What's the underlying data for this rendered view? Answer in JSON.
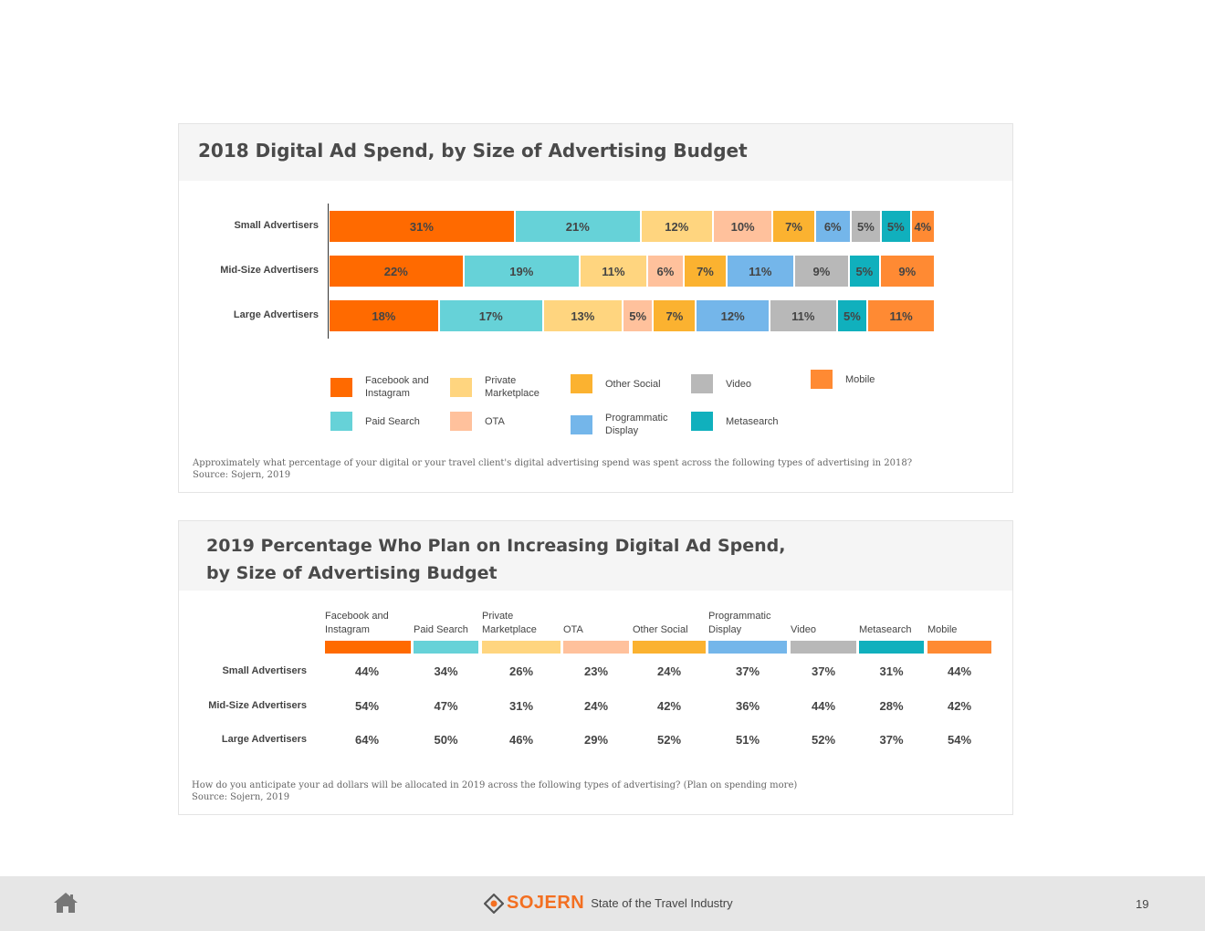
{
  "colors": {
    "facebook": "#ff6a00",
    "paid_search": "#66d2d8",
    "private_marketplace": "#ffd57f",
    "ota": "#ffc19c",
    "other_social": "#fbb230",
    "programmatic": "#74b6ea",
    "video": "#b8b8b8",
    "metasearch": "#10b0bd",
    "mobile": "#ff8a33"
  },
  "chart1": {
    "title": "2018 Digital Ad Spend, by Size of Advertising Budget",
    "note": "Approximately what percentage of your digital or your travel client's digital advertising spend was spent across the following types of advertising in 2018?",
    "source": "Source: Sojern, 2019"
  },
  "chart2": {
    "title_line1": "2019 Percentage Who Plan on Increasing Digital Ad Spend,",
    "title_line2": "by Size of Advertising Budget",
    "note": "How do you anticipate your ad dollars will be allocated in 2019 across the following types of advertising? (Plan on spending more)",
    "source": "Source: Sojern, 2019"
  },
  "chart_data": [
    {
      "type": "bar",
      "orientation": "horizontal",
      "stacked": true,
      "title": "2018 Digital Ad Spend, by Size of Advertising Budget",
      "categories": [
        "Small Advertisers",
        "Mid-Size Advertisers",
        "Large Advertisers"
      ],
      "series": [
        {
          "name": "Facebook and Instagram",
          "key": "facebook",
          "values": [
            31,
            22,
            18
          ]
        },
        {
          "name": "Paid Search",
          "key": "paid_search",
          "values": [
            21,
            19,
            17
          ]
        },
        {
          "name": "Private Marketplace",
          "key": "private_marketplace",
          "values": [
            12,
            11,
            13
          ]
        },
        {
          "name": "OTA",
          "key": "ota",
          "values": [
            10,
            6,
            5
          ]
        },
        {
          "name": "Other Social",
          "key": "other_social",
          "values": [
            7,
            7,
            7
          ]
        },
        {
          "name": "Programmatic Display",
          "key": "programmatic",
          "values": [
            6,
            11,
            12
          ]
        },
        {
          "name": "Video",
          "key": "video",
          "values": [
            5,
            9,
            11
          ]
        },
        {
          "name": "Metasearch",
          "key": "metasearch",
          "values": [
            5,
            5,
            5
          ]
        },
        {
          "name": "Mobile",
          "key": "mobile",
          "values": [
            4,
            9,
            11
          ]
        }
      ],
      "value_suffix": "%",
      "legend": [
        {
          "label": "Facebook and Instagram",
          "key": "facebook"
        },
        {
          "label": "Private Marketplace",
          "key": "private_marketplace"
        },
        {
          "label": "Other Social",
          "key": "other_social"
        },
        {
          "label": "Video",
          "key": "video"
        },
        {
          "label": "Mobile",
          "key": "mobile"
        },
        {
          "label": "Paid Search",
          "key": "paid_search"
        },
        {
          "label": "OTA",
          "key": "ota"
        },
        {
          "label": "Programmatic Display",
          "key": "programmatic"
        },
        {
          "label": "Metasearch",
          "key": "metasearch"
        }
      ]
    },
    {
      "type": "table",
      "title": "2019 Percentage Who Plan on Increasing Digital Ad Spend, by Size of Advertising Budget",
      "columns": [
        {
          "name": "Facebook and Instagram",
          "key": "facebook"
        },
        {
          "name": "Paid Search",
          "key": "paid_search"
        },
        {
          "name": "Private Marketplace",
          "key": "private_marketplace"
        },
        {
          "name": "OTA",
          "key": "ota"
        },
        {
          "name": "Other Social",
          "key": "other_social"
        },
        {
          "name": "Programmatic Display",
          "key": "programmatic"
        },
        {
          "name": "Video",
          "key": "video"
        },
        {
          "name": "Metasearch",
          "key": "metasearch"
        },
        {
          "name": "Mobile",
          "key": "mobile"
        }
      ],
      "rows": [
        {
          "label": "Small Advertisers",
          "values": [
            44,
            34,
            26,
            23,
            24,
            37,
            37,
            31,
            44
          ]
        },
        {
          "label": "Mid-Size Advertisers",
          "values": [
            54,
            47,
            31,
            24,
            42,
            36,
            44,
            28,
            42
          ]
        },
        {
          "label": "Large Advertisers",
          "values": [
            64,
            50,
            46,
            29,
            52,
            51,
            52,
            37,
            54
          ]
        }
      ],
      "value_suffix": "%"
    }
  ],
  "footer": {
    "brand": "SOJERN",
    "tagline": "State of the Travel Industry",
    "page": "19"
  }
}
